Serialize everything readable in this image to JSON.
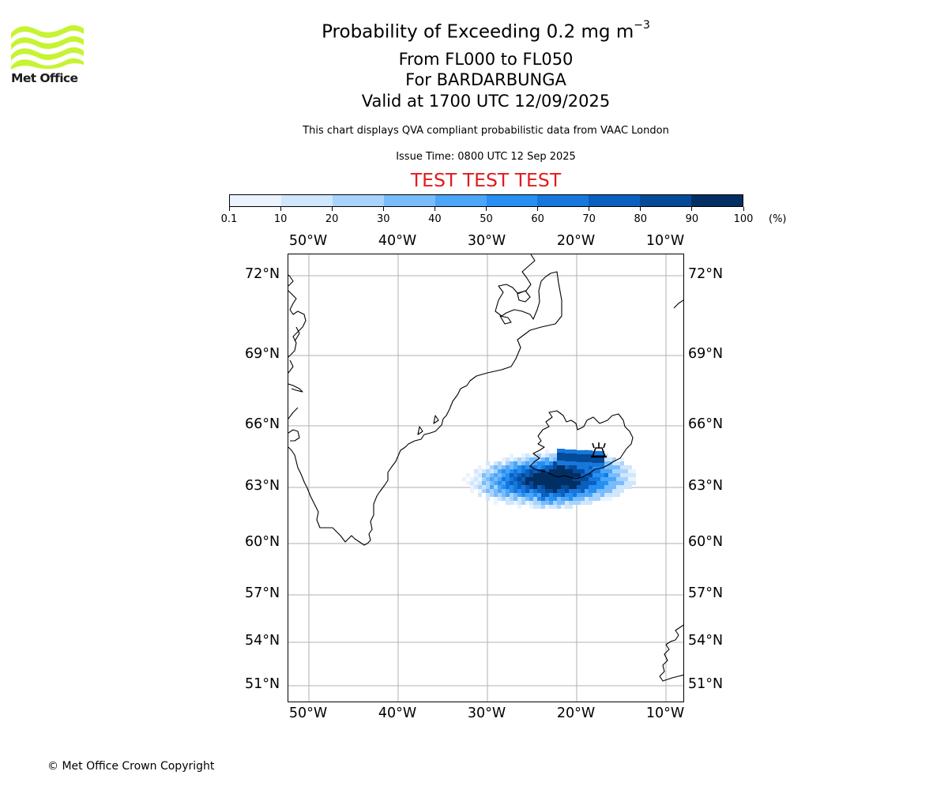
{
  "logo": {
    "text": "Met Office",
    "icon": "met-office-wave-logo",
    "color": "#c6f432"
  },
  "title": {
    "main": "Probability of Exceeding 0.2 mg m",
    "main_exp": "−3",
    "line2": "From FL000 to FL050",
    "line3": "For BARDARBUNGA",
    "line4": "Valid at 1700 UTC 12/09/2025",
    "subtitle": "This chart displays QVA compliant probabilistic data from VAAC London",
    "issue_time": "Issue Time: 0800 UTC 12 Sep 2025",
    "test_banner": "TEST TEST TEST",
    "test_color": "#e31a1c"
  },
  "colorbar": {
    "tick_labels": [
      "0.1",
      "10",
      "20",
      "30",
      "40",
      "50",
      "60",
      "70",
      "80",
      "90",
      "100"
    ],
    "unit": "(%)",
    "colors": [
      "#eaf3fe",
      "#cfe6fd",
      "#a8d3fd",
      "#79bcfb",
      "#4ba5f9",
      "#2690f2",
      "#1677dc",
      "#0b5fbe",
      "#054a99",
      "#022f63"
    ]
  },
  "map": {
    "lon_labels": [
      "50°W",
      "40°W",
      "30°W",
      "20°W",
      "10°W"
    ],
    "lat_labels": [
      "72°N",
      "69°N",
      "66°N",
      "63°N",
      "60°N",
      "57°N",
      "54°N",
      "51°N"
    ],
    "volcano_icon": "volcano-symbol-icon",
    "grid": true,
    "coastline_color": "#000000",
    "grid_color": "#b0b0b0"
  },
  "footer": {
    "copyright": "© Met Office Crown Copyright"
  }
}
